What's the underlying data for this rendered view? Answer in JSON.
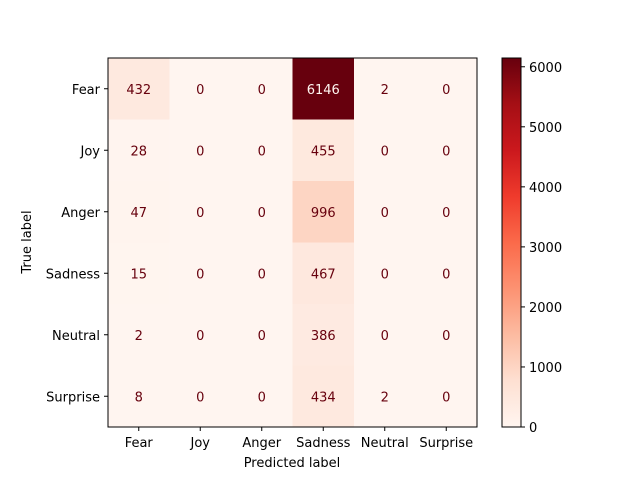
{
  "chart_data": {
    "type": "heatmap",
    "title": "",
    "xlabel": "Predicted label",
    "ylabel": "True label",
    "x_categories": [
      "Fear",
      "Joy",
      "Anger",
      "Sadness",
      "Neutral",
      "Surprise"
    ],
    "y_categories": [
      "Fear",
      "Joy",
      "Anger",
      "Sadness",
      "Neutral",
      "Surprise"
    ],
    "matrix": [
      [
        432,
        0,
        0,
        6146,
        2,
        0
      ],
      [
        28,
        0,
        0,
        455,
        0,
        0
      ],
      [
        47,
        0,
        0,
        996,
        0,
        0
      ],
      [
        15,
        0,
        0,
        467,
        0,
        0
      ],
      [
        2,
        0,
        0,
        386,
        0,
        0
      ],
      [
        8,
        0,
        0,
        434,
        2,
        0
      ]
    ],
    "colormap": "Reds",
    "vmin": 0,
    "vmax": 6146,
    "colorbar_ticks": [
      0,
      1000,
      2000,
      3000,
      4000,
      5000,
      6000
    ],
    "grid": false
  }
}
